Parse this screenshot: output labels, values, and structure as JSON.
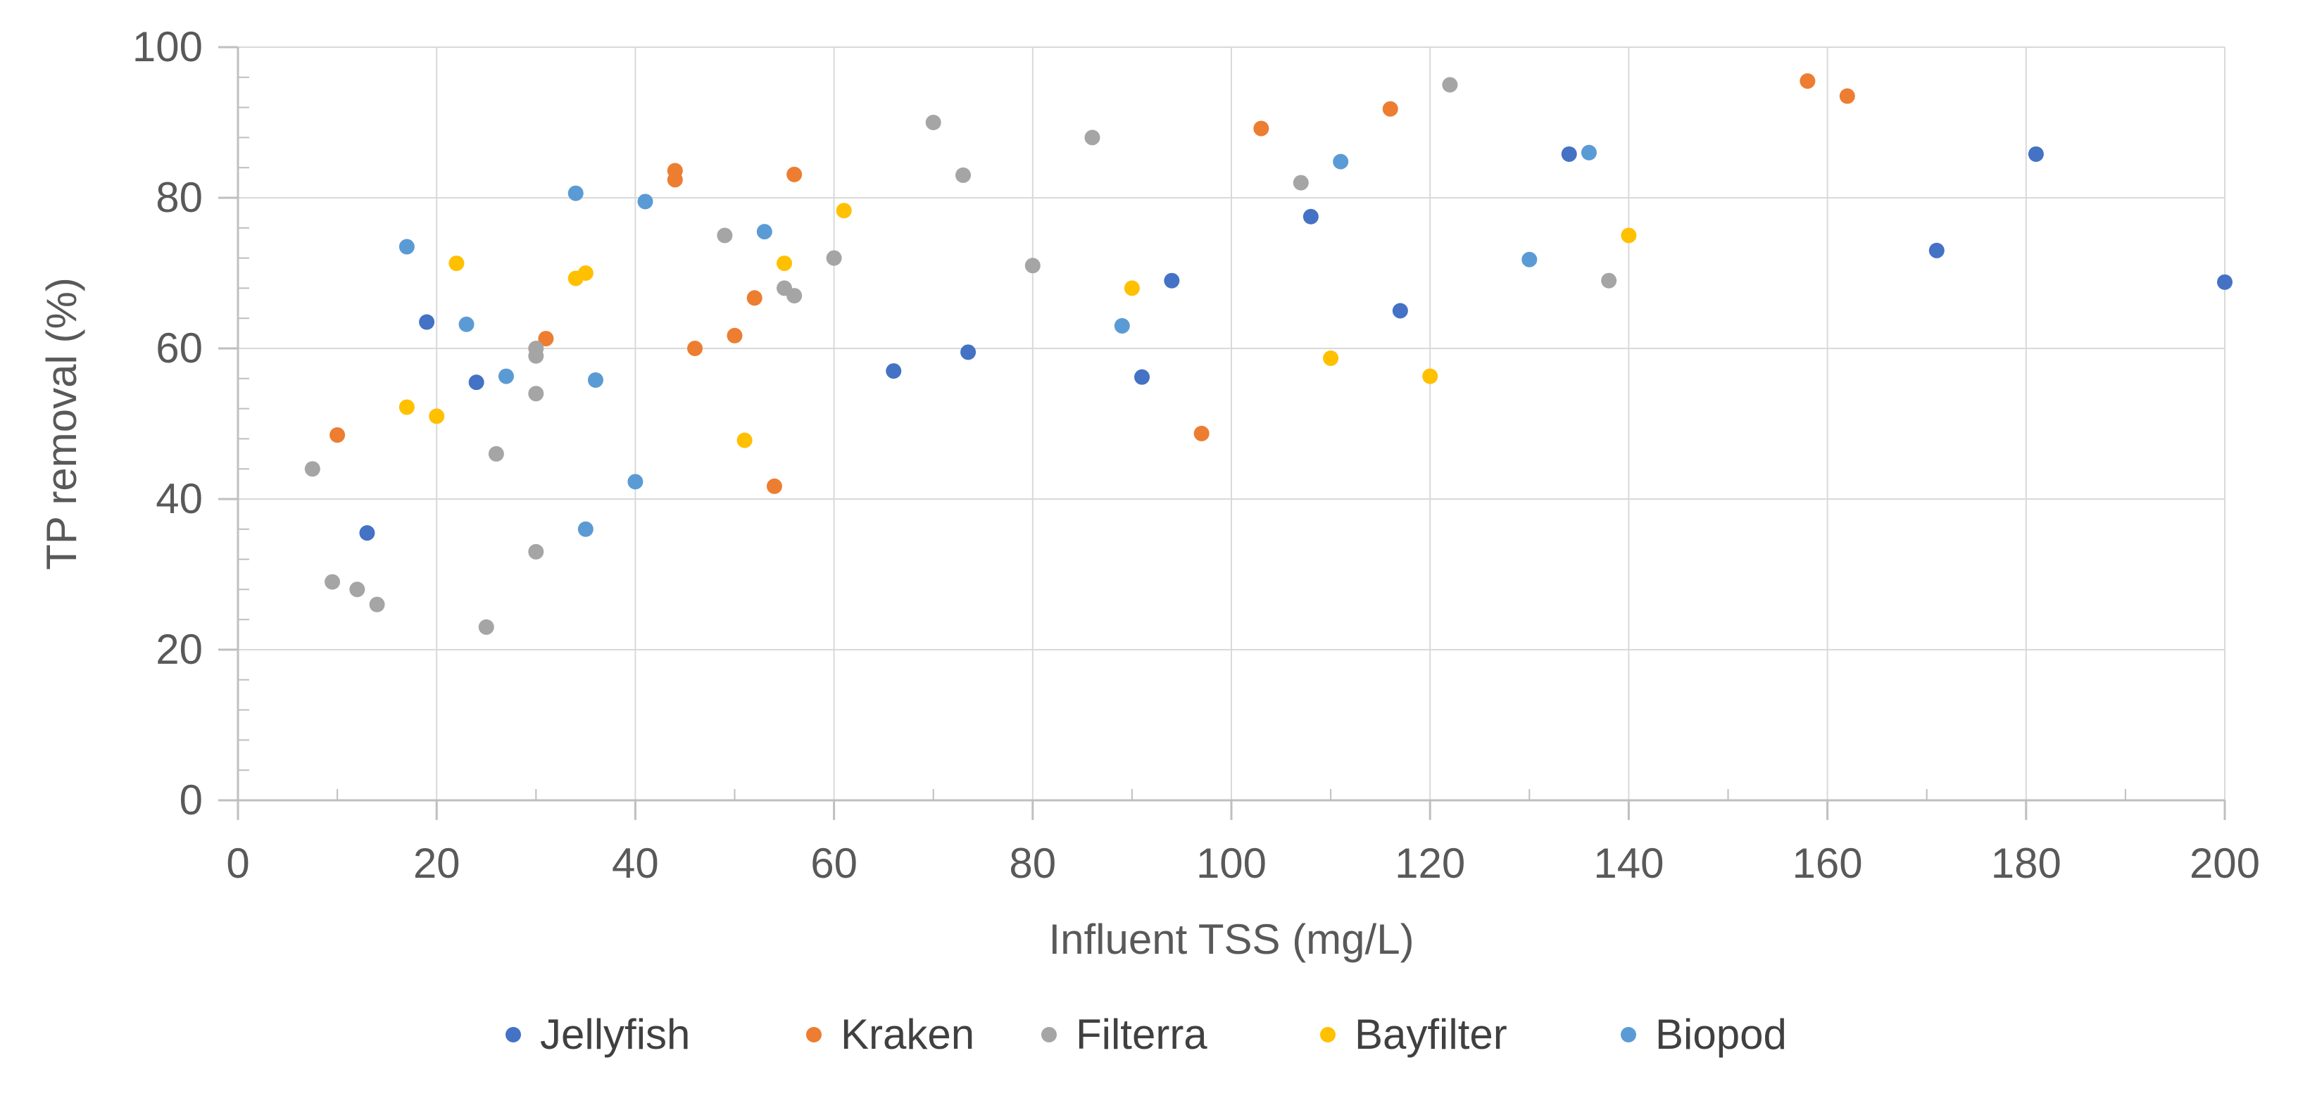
{
  "chart_data": {
    "type": "scatter",
    "title": "",
    "xlabel": "Influent TSS (mg/L)",
    "ylabel": "TP removal (%)",
    "xlim": [
      0,
      200
    ],
    "ylim": [
      0,
      100
    ],
    "x_ticks": [
      0,
      20,
      40,
      60,
      80,
      100,
      120,
      140,
      160,
      180,
      200
    ],
    "y_ticks": [
      0,
      20,
      40,
      60,
      80,
      100
    ],
    "grid": "major gridlines on both axes",
    "legend_position": "bottom",
    "series": [
      {
        "name": "Jellyfish",
        "color": "#4472C4",
        "points": [
          [
            13,
            35.5
          ],
          [
            19,
            63.5
          ],
          [
            24,
            55.5
          ],
          [
            66,
            57
          ],
          [
            73.5,
            59.5
          ],
          [
            91,
            56.2
          ],
          [
            94,
            69
          ],
          [
            108,
            77.5
          ],
          [
            117,
            65
          ],
          [
            134,
            85.8
          ],
          [
            171,
            73
          ],
          [
            181,
            85.8
          ],
          [
            200,
            68.8
          ]
        ]
      },
      {
        "name": "Kraken",
        "color": "#ED7D31",
        "points": [
          [
            10,
            48.5
          ],
          [
            31,
            61.3
          ],
          [
            44,
            83.6
          ],
          [
            44,
            82.4
          ],
          [
            46,
            60
          ],
          [
            50,
            61.7
          ],
          [
            52,
            66.7
          ],
          [
            54,
            41.7
          ],
          [
            56,
            83.1
          ],
          [
            97,
            48.7
          ],
          [
            103,
            89.2
          ],
          [
            116,
            91.8
          ],
          [
            158,
            95.5
          ],
          [
            162,
            93.5
          ]
        ]
      },
      {
        "name": "Filterra",
        "color": "#A5A5A5",
        "points": [
          [
            7.5,
            44
          ],
          [
            9.5,
            29
          ],
          [
            12,
            28
          ],
          [
            14,
            26
          ],
          [
            25,
            23
          ],
          [
            26,
            46
          ],
          [
            30,
            60
          ],
          [
            30,
            59
          ],
          [
            30,
            54
          ],
          [
            30,
            33
          ],
          [
            49,
            75
          ],
          [
            55,
            68
          ],
          [
            56,
            67
          ],
          [
            60,
            72
          ],
          [
            70,
            90
          ],
          [
            73,
            83
          ],
          [
            80,
            71
          ],
          [
            86,
            88
          ],
          [
            107,
            82
          ],
          [
            122,
            95
          ],
          [
            138,
            69
          ]
        ]
      },
      {
        "name": "Bayfilter",
        "color": "#FFC000",
        "points": [
          [
            17,
            52.2
          ],
          [
            20,
            51
          ],
          [
            22,
            71.3
          ],
          [
            34,
            69.3
          ],
          [
            35,
            70
          ],
          [
            51,
            47.8
          ],
          [
            55,
            71.3
          ],
          [
            61,
            78.3
          ],
          [
            90,
            68
          ],
          [
            110,
            58.7
          ],
          [
            120,
            56.3
          ],
          [
            140,
            75
          ]
        ]
      },
      {
        "name": "Biopod",
        "color": "#5B9BD5",
        "points": [
          [
            17,
            73.5
          ],
          [
            23,
            63.2
          ],
          [
            27,
            56.3
          ],
          [
            34,
            80.6
          ],
          [
            35,
            36
          ],
          [
            36,
            55.8
          ],
          [
            40,
            42.3
          ],
          [
            41,
            79.5
          ],
          [
            53,
            75.5
          ],
          [
            89,
            63
          ],
          [
            111,
            84.8
          ],
          [
            130,
            71.8
          ],
          [
            136,
            86
          ]
        ]
      }
    ]
  }
}
